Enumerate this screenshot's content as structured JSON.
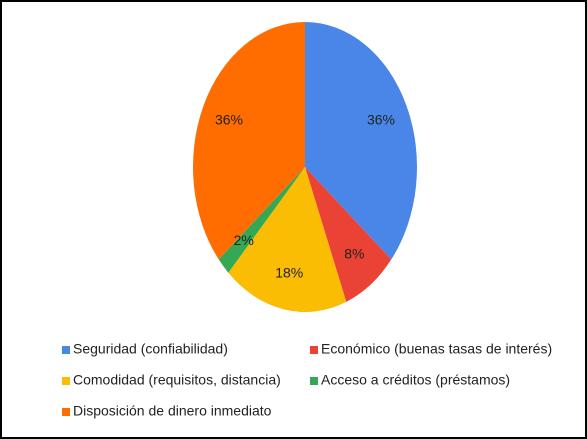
{
  "chart_data": {
    "type": "pie",
    "categories": [
      "Seguridad (confiabilidad)",
      "Económico (buenas tasas de interés)",
      "Comodidad (requisitos, distancia)",
      "Acceso a créditos (préstamos)",
      "Disposición de dinero inmediato"
    ],
    "values": [
      36,
      8,
      18,
      2,
      36
    ],
    "value_labels": [
      "36%",
      "8%",
      "18%",
      "2%",
      "36%"
    ],
    "colors": [
      "#4a86e8",
      "#ea4335",
      "#fbbc04",
      "#34a853",
      "#ff6d01"
    ],
    "legend": "bottom"
  }
}
